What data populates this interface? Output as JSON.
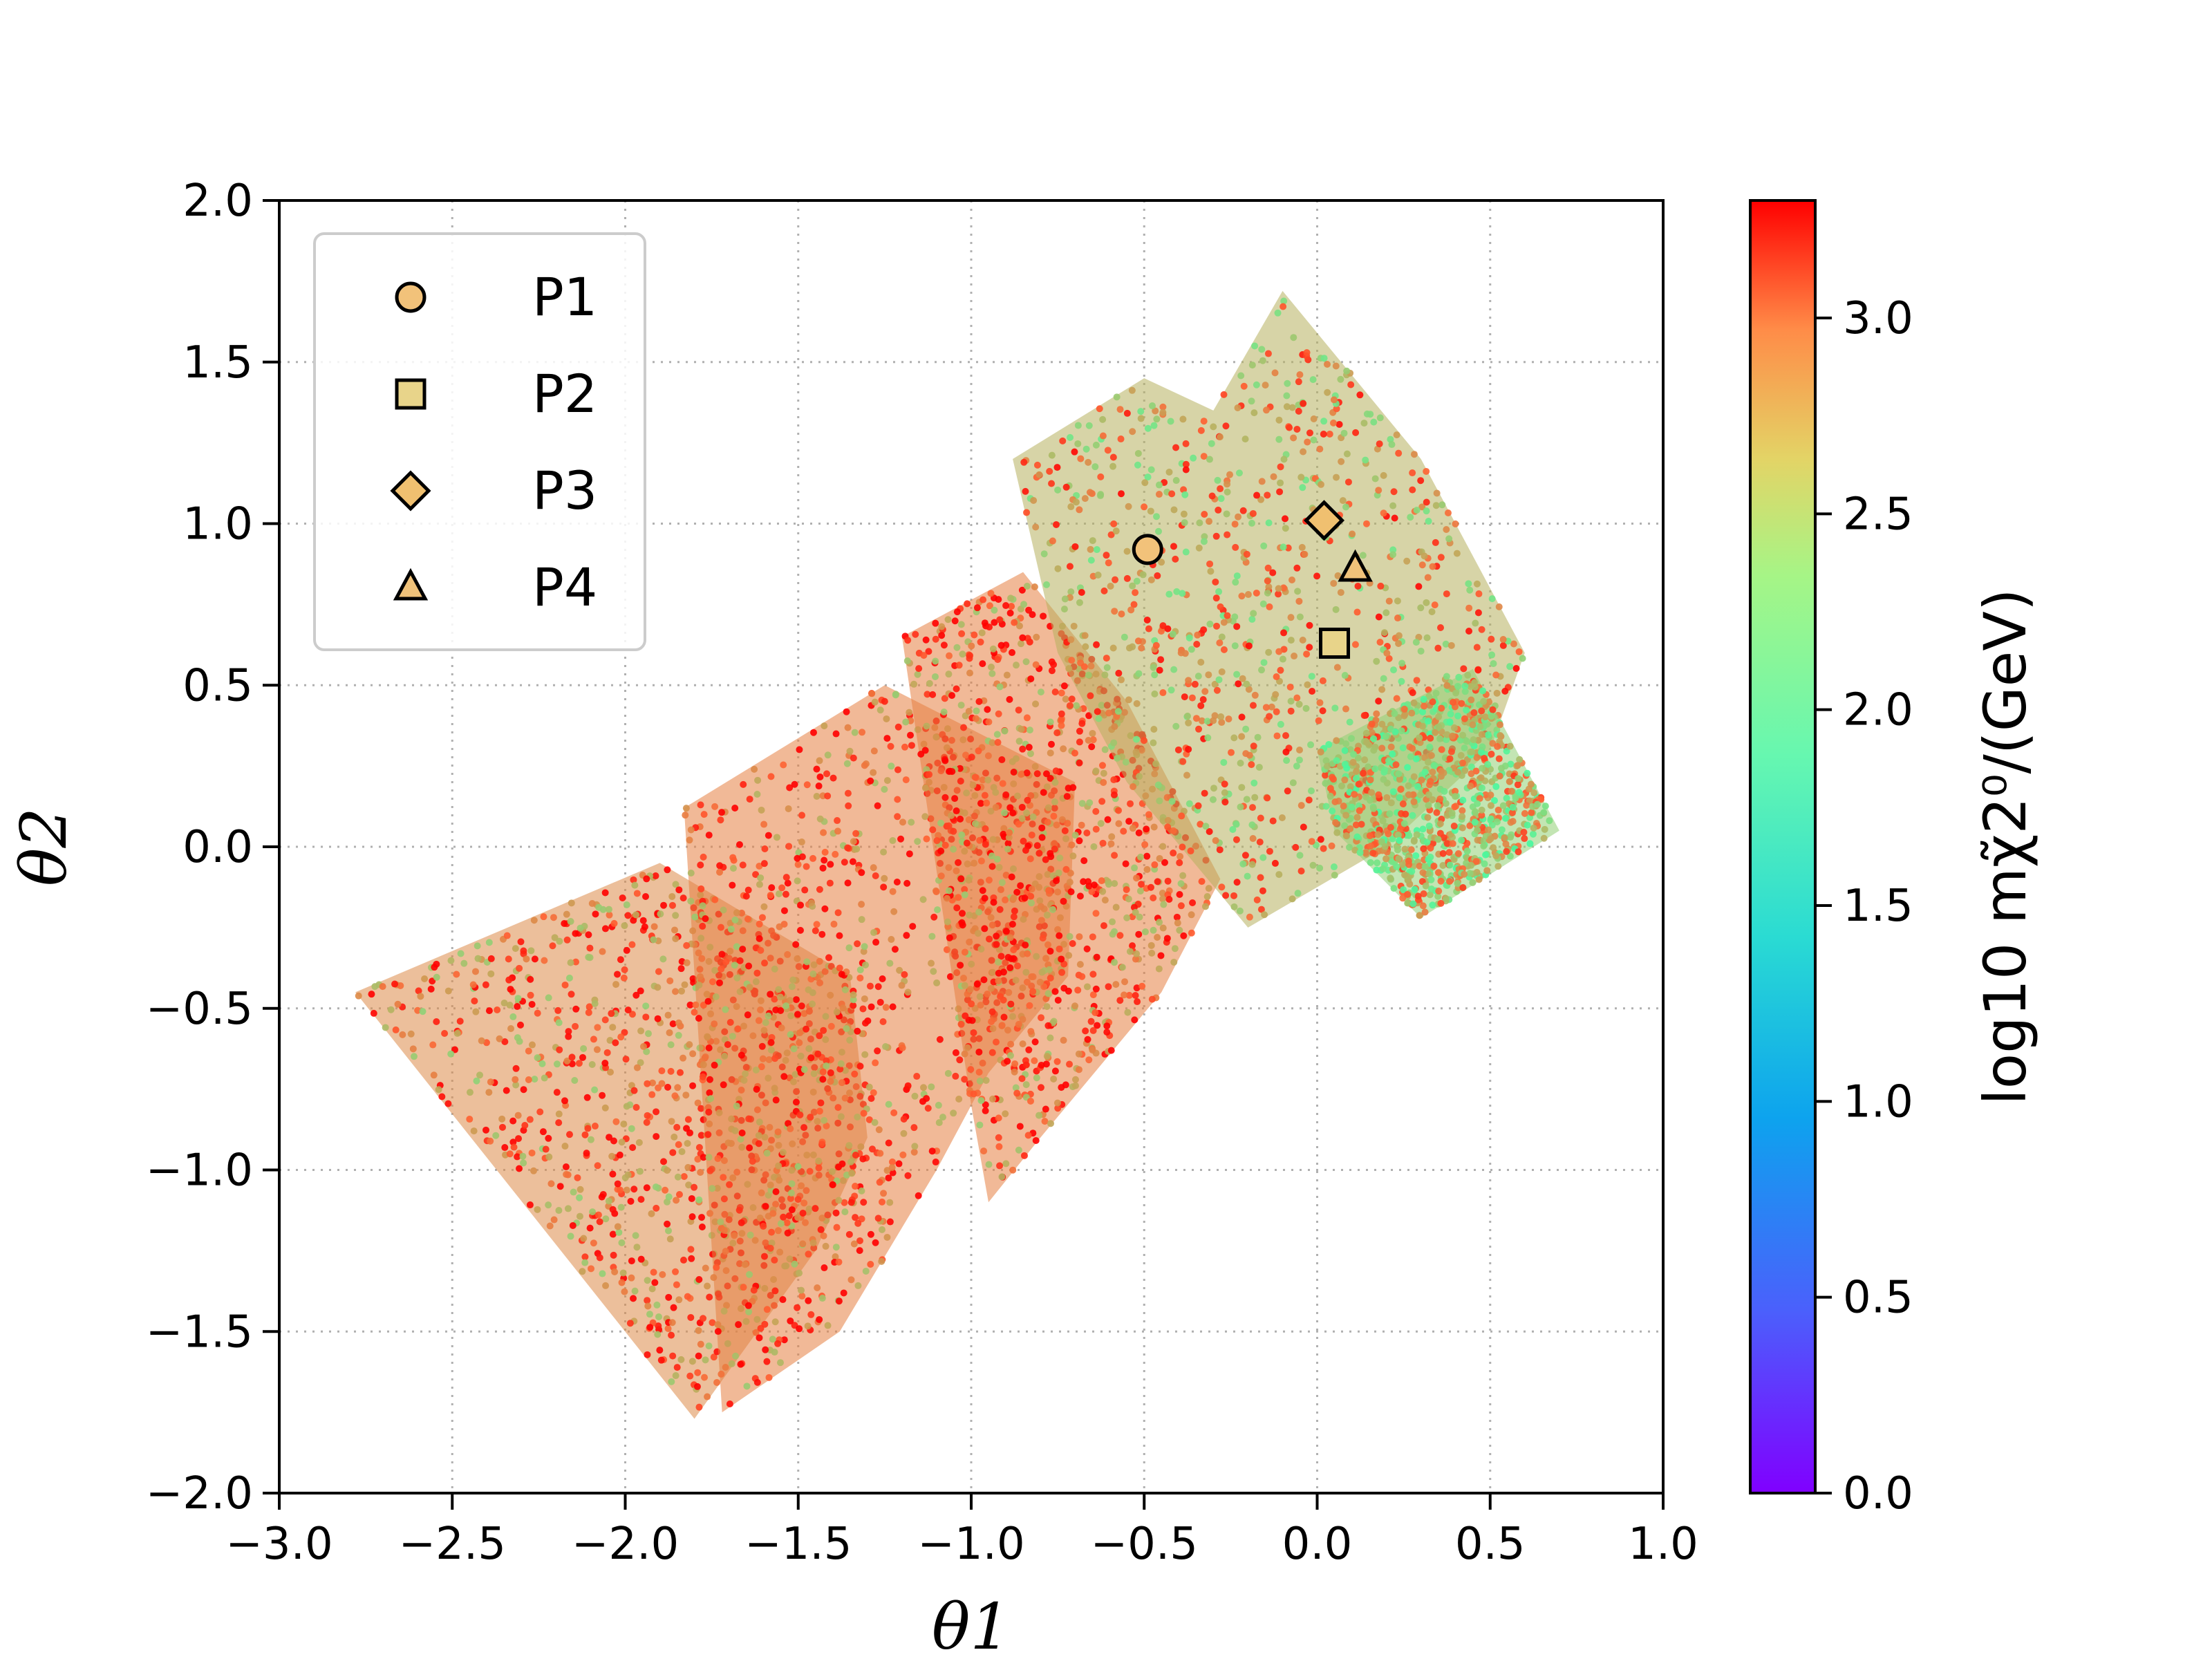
{
  "chart_data": {
    "type": "scatter",
    "xlabel": "θ1",
    "ylabel": "θ2",
    "xlim": [
      -3.0,
      1.0
    ],
    "ylim": [
      -2.0,
      2.0
    ],
    "xticks": [
      "−3.0",
      "−2.5",
      "−2.0",
      "−1.5",
      "−1.0",
      "−0.5",
      "0.0",
      "0.5",
      "1.0"
    ],
    "yticks": [
      "−2.0",
      "−1.5",
      "−1.0",
      "−0.5",
      "0.0",
      "0.5",
      "1.0",
      "1.5",
      "2.0"
    ],
    "grid": true,
    "legend_position": "top-left",
    "colorbar": {
      "label": "log10 mχ̃2⁰/(GeV)",
      "range": [
        0.0,
        3.3
      ],
      "ticks": [
        "0.0",
        "0.5",
        "1.0",
        "1.5",
        "2.0",
        "2.5",
        "3.0"
      ],
      "colormap": "rainbow"
    },
    "points": [
      {
        "name": "P1",
        "marker": "circle",
        "x": -0.49,
        "y": 0.92
      },
      {
        "name": "P2",
        "marker": "square",
        "x": 0.05,
        "y": 0.63
      },
      {
        "name": "P3",
        "marker": "diamond",
        "x": 0.02,
        "y": 1.01
      },
      {
        "name": "P4",
        "marker": "triangle",
        "x": 0.11,
        "y": 0.86
      }
    ],
    "scatter_regions": [
      {
        "polygon": [
          [
            -2.78,
            -0.45
          ],
          [
            -1.9,
            -0.05
          ],
          [
            -1.35,
            -0.4
          ],
          [
            -1.3,
            -0.9
          ],
          [
            -1.45,
            -1.25
          ],
          [
            -1.8,
            -1.77
          ]
        ],
        "mean_value": 2.7
      },
      {
        "polygon": [
          [
            -1.83,
            0.12
          ],
          [
            -1.25,
            0.5
          ],
          [
            -0.7,
            0.2
          ],
          [
            -0.72,
            -0.4
          ],
          [
            -0.95,
            -0.7
          ],
          [
            -1.1,
            -1.0
          ],
          [
            -1.38,
            -1.5
          ],
          [
            -1.72,
            -1.75
          ]
        ],
        "mean_value": 2.75
      },
      {
        "polygon": [
          [
            -1.2,
            0.65
          ],
          [
            -0.85,
            0.85
          ],
          [
            -0.55,
            0.45
          ],
          [
            -0.28,
            -0.1
          ],
          [
            -0.45,
            -0.45
          ],
          [
            -0.8,
            -0.9
          ],
          [
            -0.95,
            -1.1
          ],
          [
            -1.0,
            -0.8
          ]
        ],
        "mean_value": 2.75
      },
      {
        "polygon": [
          [
            -0.88,
            1.2
          ],
          [
            -0.5,
            1.45
          ],
          [
            -0.3,
            1.35
          ],
          [
            -0.1,
            1.72
          ],
          [
            0.3,
            1.2
          ],
          [
            0.6,
            0.6
          ],
          [
            0.5,
            0.3
          ],
          [
            0.2,
            0.0
          ],
          [
            -0.2,
            -0.25
          ],
          [
            -0.55,
            0.2
          ],
          [
            -0.75,
            0.6
          ]
        ],
        "mean_value": 2.5
      },
      {
        "polygon": [
          [
            0.0,
            0.3
          ],
          [
            0.45,
            0.55
          ],
          [
            0.7,
            0.05
          ],
          [
            0.3,
            -0.22
          ],
          [
            0.05,
            0.05
          ]
        ],
        "mean_value": 2.3
      }
    ],
    "colorbar_tick_values": [
      0,
      0.5,
      1.0,
      1.5,
      2.0,
      2.5,
      3.0
    ]
  }
}
